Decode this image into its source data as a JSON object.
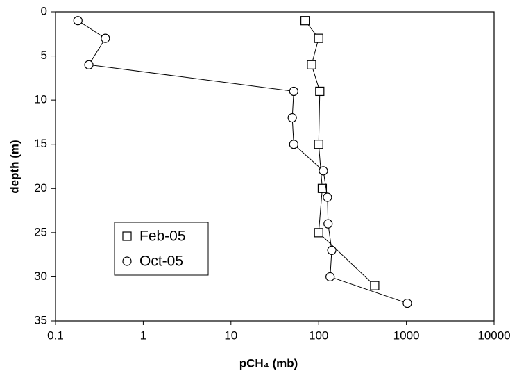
{
  "chart_data": {
    "type": "scatter-line",
    "x_label": "pCH₄ (mb)",
    "y_label": "depth (m)",
    "xscale": "log",
    "xlim": [
      0.1,
      10000
    ],
    "xticks": [
      0.1,
      1,
      10,
      100,
      1000,
      10000
    ],
    "ylim": [
      0,
      35
    ],
    "yticks": [
      0,
      5,
      10,
      15,
      20,
      25,
      30,
      35
    ],
    "y_inverted": true,
    "legend": "lower left",
    "series": [
      {
        "name": "Feb-05",
        "marker": "square",
        "color": "#000000",
        "x": [
          70,
          100,
          83,
          103,
          100,
          110,
          100,
          435
        ],
        "values": [
          1,
          3,
          6,
          9,
          15,
          20,
          25,
          31
        ]
      },
      {
        "name": "Oct-05",
        "marker": "circle",
        "color": "#000000",
        "x": [
          0.18,
          0.37,
          0.24,
          52,
          50,
          52,
          113,
          126,
          128,
          141,
          135,
          1025
        ],
        "values": [
          1,
          3,
          6,
          9,
          12,
          15,
          18,
          21,
          24,
          27,
          30,
          33
        ]
      }
    ]
  }
}
